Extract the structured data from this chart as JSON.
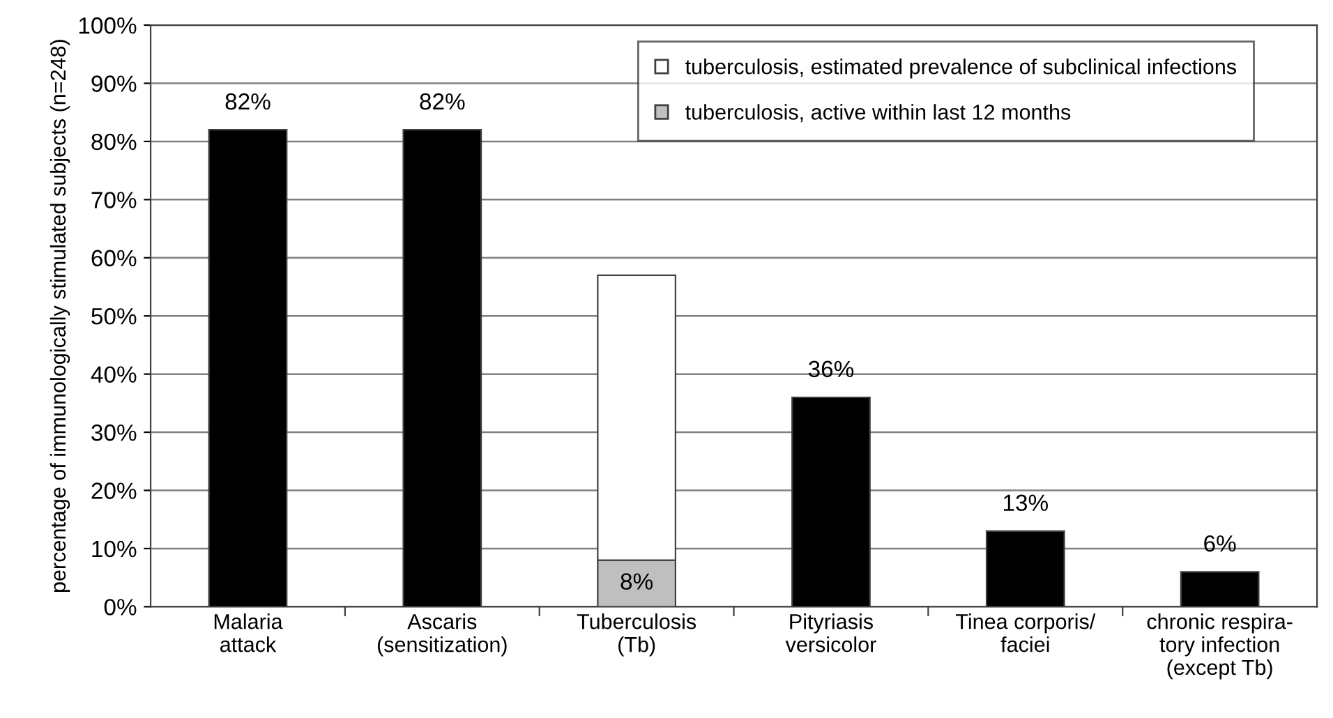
{
  "chart_data": {
    "type": "bar",
    "stacked": true,
    "ylabel": "percentage of immunologically stimulated subjects (n=248)",
    "categories": [
      "Malaria\nattack",
      "Ascaris\n(sensitization)",
      "Tuberculosis\n(Tb)",
      "Pityriasis\nversicolor",
      "Tinea corporis/\nfaciei",
      "chronic respira-\ntory infection\n(except Tb)"
    ],
    "series": [
      {
        "color": "#000000",
        "values": [
          82,
          82,
          null,
          36,
          13,
          6
        ],
        "value_labels": [
          "82%",
          "82%",
          null,
          "36%",
          "13%",
          "6%"
        ]
      },
      {
        "name": "tuberculosis, active within last 12 months",
        "color": "#bfbfbf",
        "values": [
          null,
          null,
          8,
          null,
          null,
          null
        ],
        "value_labels": [
          null,
          null,
          "8%",
          null,
          null,
          null
        ]
      },
      {
        "name": "tuberculosis, estimated prevalence of subclinical infections",
        "color": "#ffffff",
        "values": [
          null,
          null,
          49,
          null,
          null,
          null
        ]
      }
    ],
    "ylim": [
      0,
      100
    ],
    "yticks": [
      {
        "value": 0,
        "label": "0%"
      },
      {
        "value": 10,
        "label": "10%"
      },
      {
        "value": 20,
        "label": "20%"
      },
      {
        "value": 30,
        "label": "30%"
      },
      {
        "value": 40,
        "label": "40%"
      },
      {
        "value": 50,
        "label": "50%"
      },
      {
        "value": 60,
        "label": "60%"
      },
      {
        "value": 70,
        "label": "70%"
      },
      {
        "value": 80,
        "label": "80%"
      },
      {
        "value": 90,
        "label": "90%"
      },
      {
        "value": 100,
        "label": "100%"
      }
    ],
    "grid": "y",
    "legend": "top right"
  }
}
